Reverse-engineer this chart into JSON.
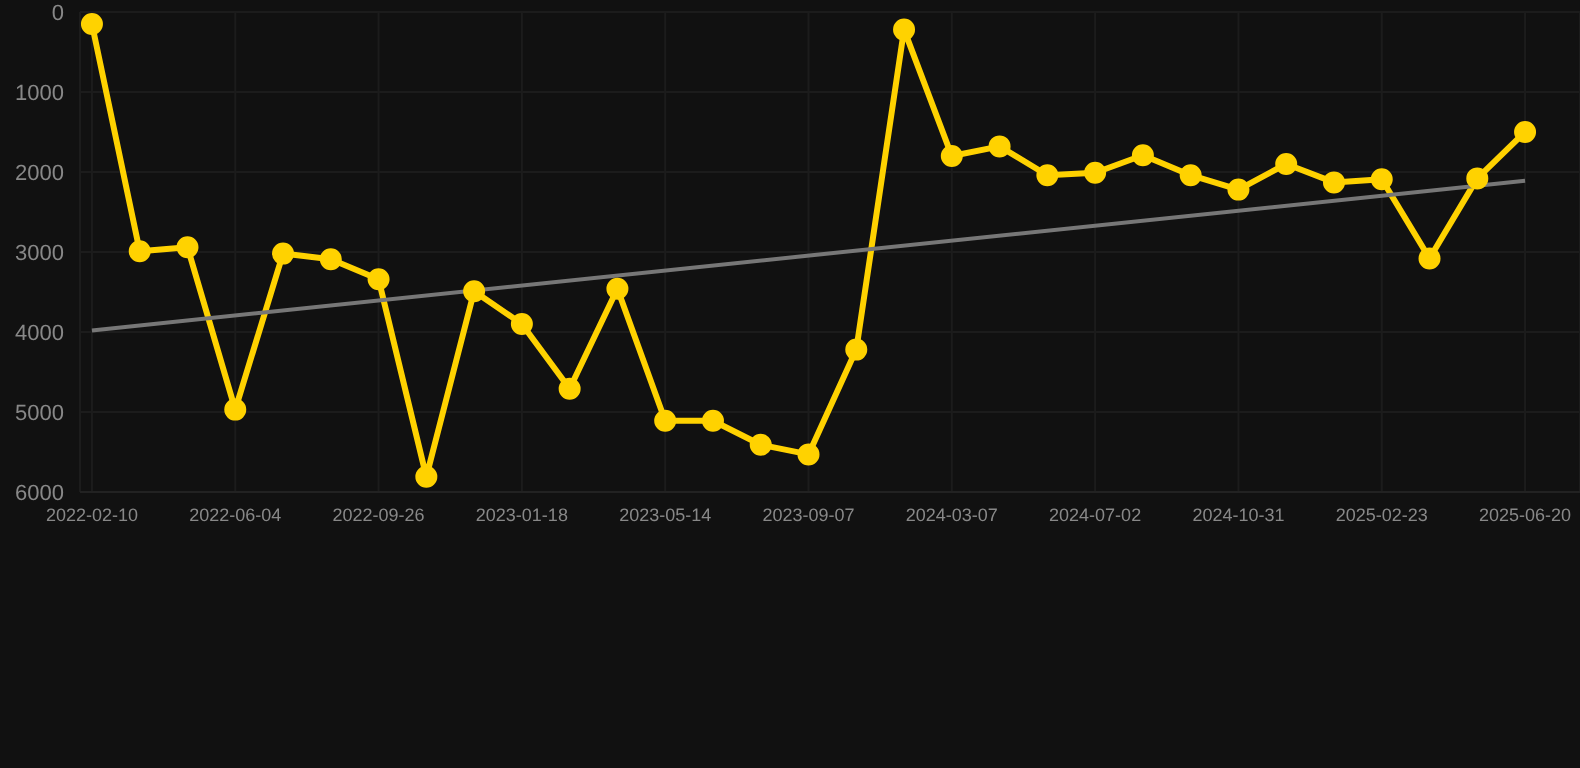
{
  "chart_data": {
    "type": "line",
    "categories": [
      "2022-02-10",
      null,
      null,
      "2022-06-04",
      null,
      null,
      "2022-09-26",
      null,
      null,
      "2023-01-18",
      null,
      null,
      "2023-05-14",
      null,
      null,
      "2023-09-07",
      null,
      null,
      "2024-03-07",
      null,
      null,
      "2024-07-02",
      null,
      null,
      "2024-10-31",
      null,
      null,
      "2025-02-23",
      null,
      null,
      "2025-06-20"
    ],
    "series": [
      {
        "color": "#ffd200",
        "values": [
          150,
          2990,
          2940,
          4970,
          3020,
          3090,
          3340,
          5810,
          3490,
          3900,
          4710,
          3460,
          5110,
          5110,
          5410,
          5530,
          4220,
          220,
          1800,
          1680,
          2040,
          2010,
          1790,
          2040,
          2220,
          1900,
          2130,
          2090,
          3080,
          2080,
          1500
        ],
        "marker": "circle"
      },
      {
        "type": "line",
        "color": "#777777",
        "marker": "none",
        "values": [
          3980,
          null,
          null,
          null,
          null,
          null,
          null,
          null,
          null,
          null,
          null,
          null,
          null,
          null,
          null,
          null,
          null,
          null,
          null,
          null,
          null,
          null,
          null,
          null,
          null,
          null,
          null,
          null,
          null,
          null,
          2110
        ]
      }
    ],
    "ylim": [
      6000,
      0
    ],
    "yticks": [
      0,
      1000,
      2000,
      3000,
      4000,
      5000,
      6000
    ],
    "grid": true
  }
}
